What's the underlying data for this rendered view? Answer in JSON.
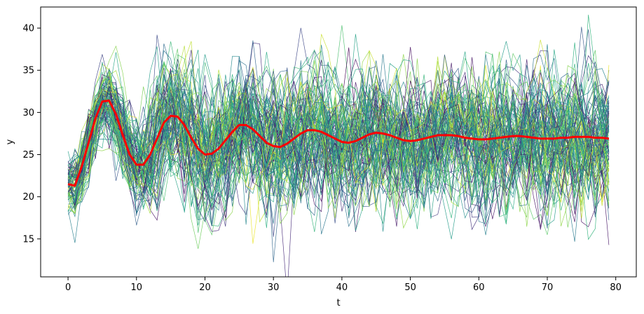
{
  "chart_data": {
    "type": "line",
    "title": "",
    "xlabel": "t",
    "ylabel": "y",
    "xlim": [
      -4,
      83
    ],
    "ylim": [
      10.5,
      42.5
    ],
    "xticks": [
      0,
      10,
      20,
      30,
      40,
      50,
      60,
      70,
      80
    ],
    "yticks": [
      15,
      20,
      25,
      30,
      35,
      40
    ],
    "grid": false,
    "legend": "none",
    "colormap": "viridis",
    "mean_color": "#ff0000",
    "mean_series": {
      "x": [
        0,
        1,
        2,
        3,
        4,
        5,
        6,
        7,
        8,
        9,
        10,
        11,
        12,
        13,
        14,
        15,
        16,
        17,
        18,
        19,
        20,
        21,
        22,
        23,
        24,
        25,
        26,
        27,
        28,
        29,
        30,
        31,
        32,
        33,
        34,
        35,
        36,
        37,
        38,
        39,
        40,
        41,
        42,
        43,
        44,
        45,
        46,
        47,
        48,
        49,
        50,
        51,
        52,
        53,
        54,
        55,
        56,
        57,
        58,
        59,
        60,
        61,
        62,
        63,
        64,
        65,
        66,
        67,
        68,
        69,
        70,
        71,
        72,
        73,
        74,
        75,
        76,
        77,
        78,
        79
      ],
      "y": [
        21.5,
        21.3,
        23.6,
        26.4,
        29.3,
        31.3,
        31.4,
        29.8,
        27.3,
        25.0,
        23.8,
        23.8,
        25.0,
        26.9,
        28.8,
        29.6,
        29.5,
        28.5,
        27.0,
        25.7,
        25.0,
        25.1,
        25.7,
        26.7,
        27.7,
        28.5,
        28.5,
        28.0,
        27.2,
        26.4,
        26.0,
        25.9,
        26.3,
        26.9,
        27.5,
        27.9,
        27.9,
        27.7,
        27.3,
        26.9,
        26.5,
        26.4,
        26.6,
        27.0,
        27.4,
        27.6,
        27.5,
        27.3,
        27.0,
        26.7,
        26.6,
        26.7,
        26.9,
        27.1,
        27.3,
        27.3,
        27.3,
        27.2,
        27.0,
        26.9,
        26.8,
        26.8,
        26.9,
        27.0,
        27.1,
        27.2,
        27.2,
        27.1,
        27.0,
        26.9,
        26.9,
        26.9,
        27.0,
        27.0,
        27.1,
        27.1,
        27.1,
        27.0,
        27.0,
        26.9
      ]
    },
    "ensemble": {
      "count": 100,
      "length": 80,
      "description_values": "Ensemble of noisy damped-oscillation trajectories around the mean series, spread ~±4 to ±7 units"
    }
  }
}
